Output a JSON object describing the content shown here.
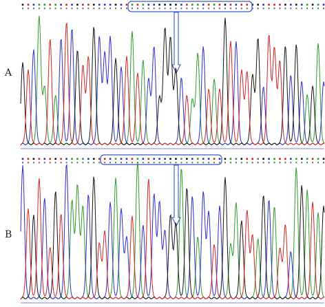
{
  "panels": [
    {
      "label": "A",
      "box_text": "",
      "seed": 11
    },
    {
      "label": "B",
      "box_text": "",
      "seed": 29
    }
  ],
  "bases": [
    "A",
    "C",
    "G",
    "T"
  ],
  "colors": {
    "A": "#2a9a2a",
    "C": "#2b2bd0",
    "G": "#111111",
    "T": "#d62020",
    "highlight": "#3b56c8",
    "baseline": "#8a7ff0"
  }
}
